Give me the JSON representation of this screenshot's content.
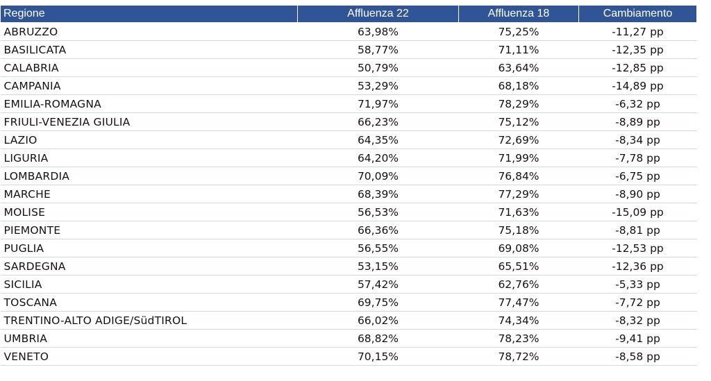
{
  "table": {
    "headers": [
      "Regione",
      "Affluenza 22",
      "Affluenza 18",
      "Cambiamento"
    ],
    "rows": [
      [
        "ABRUZZO",
        "63,98%",
        "75,25%",
        "-11,27 pp"
      ],
      [
        "BASILICATA",
        "58,77%",
        "71,11%",
        "-12,35 pp"
      ],
      [
        "CALABRIA",
        "50,79%",
        "63,64%",
        "-12,85 pp"
      ],
      [
        "CAMPANIA",
        "53,29%",
        "68,18%",
        "-14,89 pp"
      ],
      [
        "EMILIA-ROMAGNA",
        "71,97%",
        "78,29%",
        "-6,32 pp"
      ],
      [
        "FRIULI-VENEZIA GIULIA",
        "66,23%",
        "75,12%",
        "-8,89 pp"
      ],
      [
        "LAZIO",
        "64,35%",
        "72,69%",
        "-8,34 pp"
      ],
      [
        "LIGURIA",
        "64,20%",
        "71,99%",
        "-7,78 pp"
      ],
      [
        "LOMBARDIA",
        "70,09%",
        "76,84%",
        "-6,75 pp"
      ],
      [
        "MARCHE",
        "68,39%",
        "77,29%",
        "-8,90 pp"
      ],
      [
        "MOLISE",
        "56,53%",
        "71,63%",
        "-15,09 pp"
      ],
      [
        "PIEMONTE",
        "66,36%",
        "75,18%",
        "-8,81 pp"
      ],
      [
        "PUGLIA",
        "56,55%",
        "69,08%",
        "-12,53 pp"
      ],
      [
        "SARDEGNA",
        "53,15%",
        "65,51%",
        "-12,36 pp"
      ],
      [
        "SICILIA",
        "57,42%",
        "62,76%",
        "-5,33 pp"
      ],
      [
        "TOSCANA",
        "69,75%",
        "77,47%",
        "-7,72 pp"
      ],
      [
        "TRENTINO-ALTO ADIGE/SüdTIROL",
        "66,02%",
        "74,34%",
        "-8,32 pp"
      ],
      [
        "UMBRIA",
        "68,82%",
        "78,23%",
        "-9,41 pp"
      ],
      [
        "VENETO",
        "70,15%",
        "78,72%",
        "-8,58 pp"
      ]
    ]
  },
  "colors": {
    "header_bg": "#2f5597",
    "header_text": "#ffffff",
    "row_rule": "#cfd7e6"
  }
}
